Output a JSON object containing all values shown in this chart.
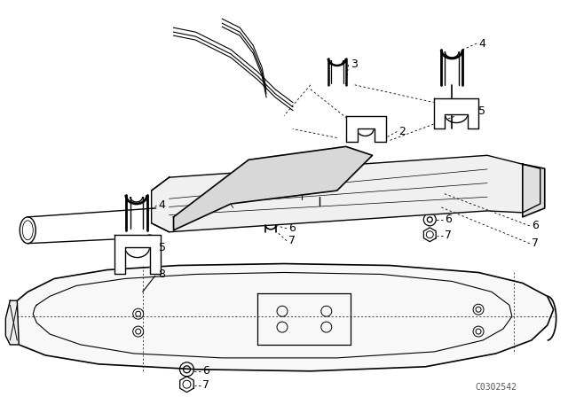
{
  "background_color": "#ffffff",
  "line_color": "#000000",
  "fig_width": 6.4,
  "fig_height": 4.48,
  "dpi": 100,
  "watermark": "C0302542",
  "watermark_fontsize": 7
}
